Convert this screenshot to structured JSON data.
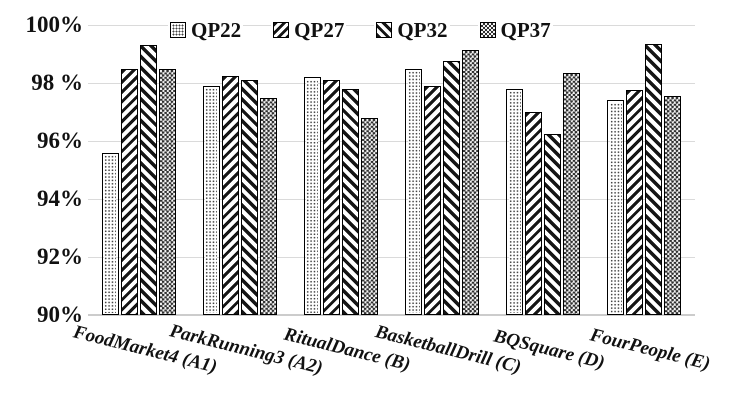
{
  "figure": {
    "background": "#ffffff"
  },
  "chart_data": {
    "type": "bar",
    "title": "",
    "xlabel": "",
    "ylabel": "",
    "categories": [
      "FoodMarket4 (A1)",
      "ParkRunning3 (A2)",
      "RitualDance (B)",
      "BasketballDrill (C)",
      "BQSquare (D)",
      "FourPeople (E)"
    ],
    "series": [
      {
        "name": "QP22",
        "pattern": "dots",
        "values": [
          95.6,
          97.9,
          98.2,
          98.5,
          97.8,
          97.4
        ]
      },
      {
        "name": "QP27",
        "pattern": "diag-up",
        "values": [
          98.5,
          98.25,
          98.1,
          97.9,
          97.0,
          97.75
        ]
      },
      {
        "name": "QP32",
        "pattern": "diag-down",
        "values": [
          99.3,
          98.1,
          97.8,
          98.75,
          96.25,
          99.35
        ]
      },
      {
        "name": "QP37",
        "pattern": "checker",
        "values": [
          98.5,
          97.5,
          96.8,
          99.15,
          98.35,
          97.55
        ]
      }
    ],
    "ylim": [
      90,
      100
    ],
    "ytick_values": [
      100,
      98,
      96,
      94,
      92,
      90
    ],
    "ytick_labels": [
      "100%",
      "98 %",
      "96%",
      "94%",
      "92%",
      "90%"
    ],
    "grid": true,
    "legend_position": "top-inside",
    "bar_style": "monochrome-patterned",
    "colors": {
      "bar_edge": "#000000",
      "pattern_ink": "#151515",
      "gridline": "#dadada",
      "axis_line": "#cccccc",
      "text": "#111111",
      "background": "#ffffff"
    }
  }
}
